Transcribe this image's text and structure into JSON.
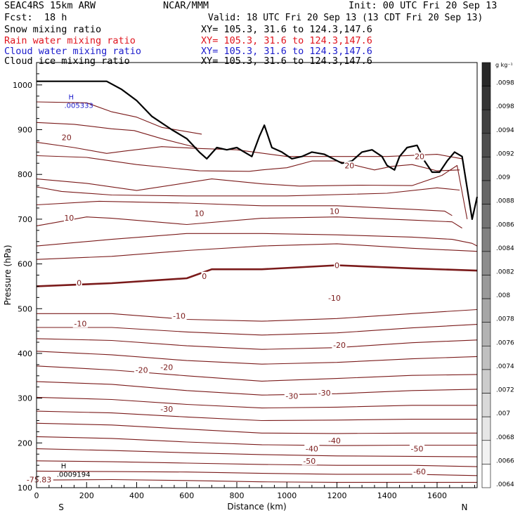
{
  "header": {
    "model": "SEAC4RS 15km ARW",
    "org": "NCAR/MMM",
    "init": "Init: 00 UTC Fri 20 Sep 13",
    "fcst": "Fcst:  18 h",
    "valid": "Valid: 18 UTC Fri 20 Sep 13 (13 CDT Fri 20 Sep 13)"
  },
  "fields": [
    {
      "name": "Snow mixing ratio",
      "xy": "XY= 105.3, 31.6 to 124.3,147.6",
      "color": "#000000"
    },
    {
      "name": "Rain water mixing ratio",
      "xy": "XY= 105.3, 31.6 to 124.3,147.6",
      "color": "#e0141e"
    },
    {
      "name": "Cloud water mixing ratio",
      "xy": "XY= 105.3, 31.6 to 124.3,147.6",
      "color": "#1c1ccc"
    },
    {
      "name": "Cloud ice mixing ratio",
      "xy": "XY= 105.3, 31.6 to 124.3,147.6",
      "color": "#000000"
    }
  ],
  "chart_data": {
    "type": "line",
    "xlabel": "Distance (km)",
    "ylabel": "Pressure (hPa)",
    "xlim": [
      0,
      1760
    ],
    "ylim": [
      1050,
      100
    ],
    "x_ticks": [
      "0",
      "200",
      "400",
      "600",
      "800",
      "1000",
      "1200",
      "1400",
      "1600"
    ],
    "y_ticks": [
      "100",
      "200",
      "300",
      "400",
      "500",
      "600",
      "700",
      "800",
      "900",
      "1000"
    ],
    "ends": {
      "left": "S",
      "right": "N"
    },
    "contour_color": "#7a1a1a",
    "contours": [
      {
        "x": [
          0,
          300,
          600,
          900,
          1200,
          1500,
          1760
        ],
        "y": [
          117,
          118,
          116,
          113,
          112,
          112,
          112
        ]
      },
      {
        "x": [
          0,
          300,
          600,
          900,
          1200,
          1500,
          1760
        ],
        "y": [
          137,
          136,
          135,
          132,
          130,
          130,
          127
        ]
      },
      {
        "x": [
          0,
          300,
          600,
          900,
          1200,
          1500,
          1760
        ],
        "y": [
          160,
          158,
          155,
          152,
          150,
          150,
          147
        ]
      },
      {
        "x": [
          0,
          300,
          600,
          900,
          1200,
          1500,
          1760
        ],
        "y": [
          187,
          183,
          178,
          174,
          171,
          170,
          169
        ]
      },
      {
        "x": [
          0,
          300,
          600,
          900,
          1200,
          1500,
          1760
        ],
        "y": [
          214,
          210,
          202,
          196,
          194,
          195,
          195
        ]
      },
      {
        "x": [
          0,
          300,
          600,
          900,
          1200,
          1500,
          1760
        ],
        "y": [
          244,
          240,
          231,
          222,
          221,
          222,
          222
        ]
      },
      {
        "x": [
          0,
          300,
          600,
          900,
          1200,
          1500,
          1760
        ],
        "y": [
          271,
          267,
          258,
          250,
          251,
          253,
          253
        ]
      },
      {
        "x": [
          0,
          300,
          600,
          900,
          1200,
          1500,
          1760
        ],
        "y": [
          302,
          297,
          286,
          278,
          280,
          284,
          284
        ]
      },
      {
        "x": [
          0,
          300,
          600,
          900,
          1200,
          1500,
          1760
        ],
        "y": [
          337,
          331,
          317,
          307,
          310,
          317,
          320
        ]
      },
      {
        "x": [
          0,
          300,
          600,
          900,
          1200,
          1500,
          1760
        ],
        "y": [
          372,
          363,
          350,
          338,
          344,
          351,
          353
        ]
      },
      {
        "x": [
          0,
          300,
          600,
          900,
          1200,
          1500,
          1760
        ],
        "y": [
          405,
          397,
          384,
          376,
          380,
          388,
          393
        ]
      },
      {
        "x": [
          0,
          300,
          600,
          900,
          1200,
          1500,
          1760
        ],
        "y": [
          433,
          429,
          417,
          409,
          413,
          424,
          430
        ]
      },
      {
        "x": [
          0,
          300,
          600,
          900,
          1200,
          1500,
          1760
        ],
        "y": [
          458,
          458,
          448,
          441,
          446,
          457,
          465
        ]
      },
      {
        "x": [
          0,
          300,
          600,
          900,
          1200,
          1500,
          1760
        ],
        "y": [
          489,
          489,
          476,
          472,
          478,
          489,
          498
        ]
      },
      {
        "x": [
          0,
          300,
          600,
          700,
          900,
          1200,
          1500,
          1760
        ],
        "y": [
          550,
          557,
          568,
          588,
          588,
          597,
          590,
          585
        ],
        "bold": true
      },
      {
        "x": [
          0,
          300,
          600,
          900,
          1200,
          1500,
          1760
        ],
        "y": [
          610,
          617,
          630,
          640,
          645,
          635,
          628
        ]
      },
      {
        "x": [
          0,
          300,
          600,
          900,
          1200,
          1500,
          1660,
          1740,
          1760
        ],
        "y": [
          640,
          655,
          668,
          668,
          665,
          660,
          655,
          646,
          640
        ]
      },
      {
        "x": [
          0,
          200,
          300,
          600,
          900,
          1200,
          1500,
          1660,
          1700
        ],
        "y": [
          685,
          705,
          702,
          688,
          702,
          705,
          698,
          694,
          680
        ]
      },
      {
        "x": [
          0,
          250,
          600,
          900,
          1200,
          1500,
          1630,
          1660
        ],
        "y": [
          732,
          740,
          736,
          730,
          730,
          722,
          718,
          708
        ]
      },
      {
        "x": [
          0,
          100,
          300,
          600,
          1000,
          1400,
          1600,
          1690
        ],
        "y": [
          772,
          762,
          754,
          752,
          752,
          758,
          770,
          765
        ]
      },
      {
        "x": [
          0,
          200,
          400,
          700,
          900,
          1050,
          1300,
          1500,
          1620,
          1680,
          1720
        ],
        "y": [
          790,
          780,
          764,
          790,
          779,
          774,
          776,
          775,
          798,
          820,
          700
        ]
      },
      {
        "x": [
          0,
          200,
          400,
          650,
          850,
          900,
          1000,
          1100,
          1200,
          1350,
          1420,
          1500,
          1600,
          1690
        ],
        "y": [
          842,
          838,
          822,
          808,
          807,
          810,
          815,
          830,
          830,
          810,
          818,
          822,
          808,
          810
        ]
      },
      {
        "x": [
          0,
          150,
          280,
          350,
          500,
          650,
          800,
          1000,
          1200,
          1400,
          1600,
          1700
        ],
        "y": [
          872,
          860,
          847,
          852,
          862,
          858,
          855,
          840,
          840,
          840,
          845,
          835
        ]
      },
      {
        "x": [
          0,
          150,
          300,
          390,
          500,
          640
        ],
        "y": [
          916,
          912,
          902,
          898,
          880,
          860
        ]
      },
      {
        "x": [
          0,
          200,
          300,
          400,
          500,
          660
        ],
        "y": [
          962,
          960,
          940,
          928,
          905,
          890
        ]
      }
    ],
    "contour_labels": [
      {
        "x": 10,
        "p": 118,
        "text": "-75.83"
      },
      {
        "x": 1530,
        "p": 136,
        "text": "-60"
      },
      {
        "x": 1090,
        "p": 160,
        "text": "-50"
      },
      {
        "x": 1520,
        "p": 187,
        "text": "-50"
      },
      {
        "x": 1100,
        "p": 187,
        "text": "-40"
      },
      {
        "x": 1190,
        "p": 205,
        "text": "-40"
      },
      {
        "x": 520,
        "p": 276,
        "text": "-30"
      },
      {
        "x": 1020,
        "p": 305,
        "text": "-30"
      },
      {
        "x": 1150,
        "p": 312,
        "text": "-30"
      },
      {
        "x": 420,
        "p": 363,
        "text": "-20"
      },
      {
        "x": 520,
        "p": 369,
        "text": "-20"
      },
      {
        "x": 1210,
        "p": 419,
        "text": "-20"
      },
      {
        "x": 175,
        "p": 467,
        "text": "-10"
      },
      {
        "x": 570,
        "p": 484,
        "text": "-10"
      },
      {
        "x": 1190,
        "p": 524,
        "text": "-10"
      },
      {
        "x": 170,
        "p": 558,
        "text": "0"
      },
      {
        "x": 670,
        "p": 573,
        "text": "0"
      },
      {
        "x": 1200,
        "p": 597,
        "text": "0"
      },
      {
        "x": 130,
        "p": 703,
        "text": "10"
      },
      {
        "x": 650,
        "p": 713,
        "text": "10"
      },
      {
        "x": 1190,
        "p": 718,
        "text": "10"
      },
      {
        "x": 1250,
        "p": 820,
        "text": "20"
      },
      {
        "x": 1530,
        "p": 840,
        "text": "20"
      },
      {
        "x": 120,
        "p": 883,
        "text": "20"
      }
    ],
    "terrain": {
      "x": [
        0,
        280,
        340,
        400,
        460,
        540,
        600,
        650,
        680,
        720,
        760,
        800,
        830,
        860,
        890,
        910,
        940,
        980,
        1020,
        1060,
        1100,
        1150,
        1220,
        1260,
        1300,
        1340,
        1380,
        1400,
        1430,
        1450,
        1480,
        1520,
        1550,
        1580,
        1610,
        1640,
        1670,
        1700,
        1740,
        1760
      ],
      "y": [
        1008,
        1008,
        990,
        965,
        930,
        900,
        880,
        850,
        835,
        860,
        855,
        860,
        850,
        840,
        885,
        910,
        860,
        850,
        835,
        840,
        850,
        845,
        825,
        830,
        850,
        855,
        840,
        820,
        810,
        840,
        860,
        865,
        830,
        805,
        805,
        830,
        850,
        840,
        700,
        750
      ],
      "color": "#000000"
    },
    "max_markers": [
      {
        "label": "H",
        "value": ".0009194",
        "x": 120,
        "p": 135,
        "color": "#000000"
      },
      {
        "label": "H",
        "value": ".005333",
        "x": 150,
        "p": 960,
        "color": "#1c1ccc"
      }
    ],
    "colorbar": {
      "unit": "g kg⁻¹",
      "labels": [
        ".0098",
        ".0098",
        ".0094",
        ".0092",
        ".009",
        ".0088",
        ".0086",
        ".0084",
        ".0082",
        ".008",
        ".0078",
        ".0076",
        ".0074",
        ".0072",
        ".007",
        ".0068",
        ".0066",
        ".0064"
      ]
    }
  }
}
